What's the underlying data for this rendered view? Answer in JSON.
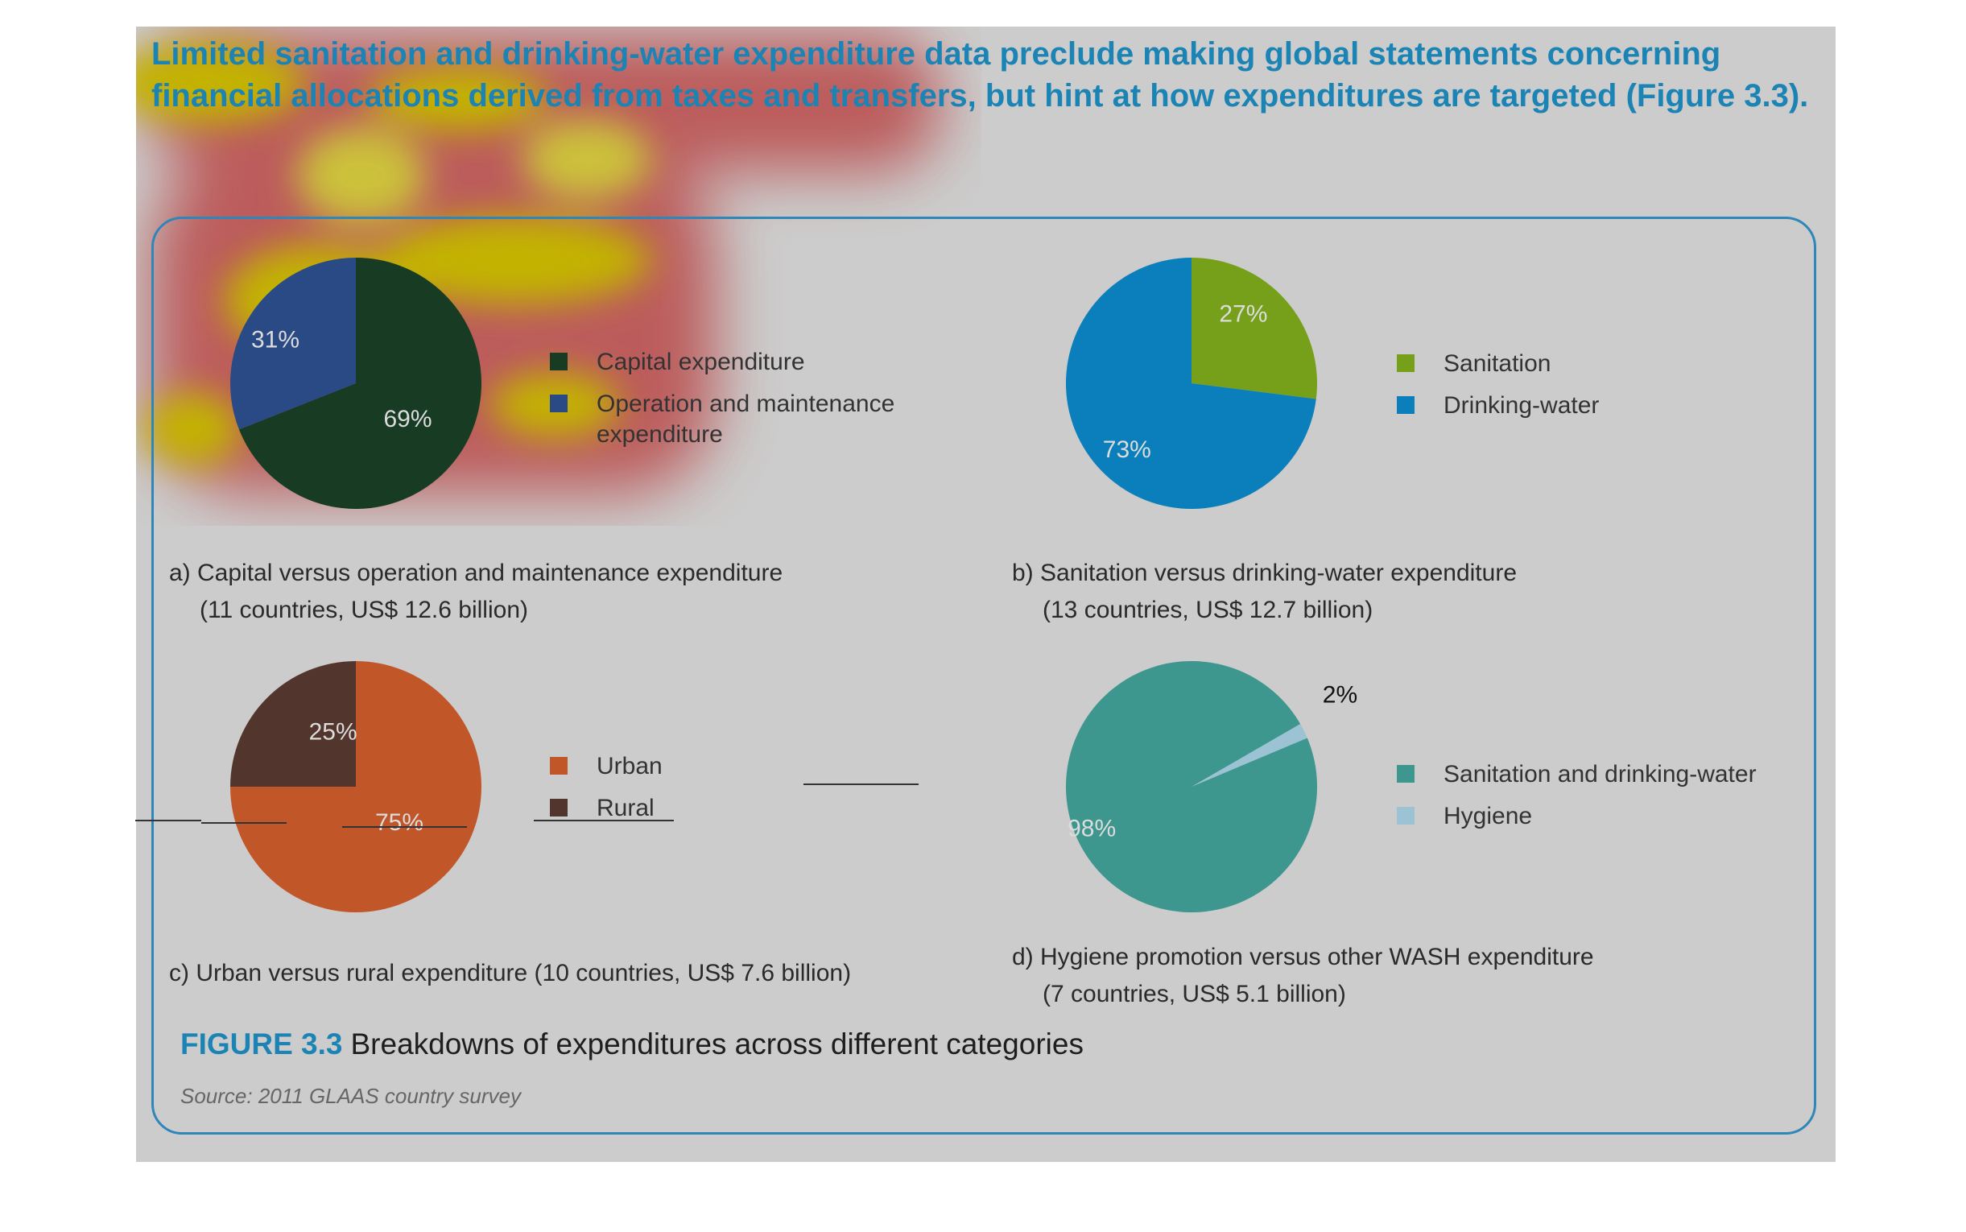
{
  "intro_text": "Limited sanitation and drinking-water expenditure data preclude making global statements concerning financial allocations derived from taxes and transfers, but hint at how expenditures are targeted (Figure 3.3).",
  "figure": {
    "number": "FIGURE 3.3",
    "title": "Breakdowns of expenditures across different categories",
    "source": "Source: 2011 GLAAS country survey"
  },
  "chart_data": [
    {
      "type": "pie",
      "title": "a) Capital versus operation and maintenance expenditure",
      "subtitle": "(11 countries, US$ 12.6 billion)",
      "slices": [
        {
          "label": "Capital expenditure",
          "value": 69,
          "display": "69%",
          "color": "#173b23"
        },
        {
          "label": "Operation and maintenance expenditure",
          "value": 31,
          "display": "31%",
          "color": "#2a4a86"
        }
      ]
    },
    {
      "type": "pie",
      "title": "b) Sanitation versus drinking-water expenditure",
      "subtitle": "(13 countries, US$ 12.7 billion)",
      "slices": [
        {
          "label": "Sanitation",
          "value": 27,
          "display": "27%",
          "color": "#76a01a"
        },
        {
          "label": "Drinking-water",
          "value": 73,
          "display": "73%",
          "color": "#0a7fbb"
        }
      ]
    },
    {
      "type": "pie",
      "title": "c) Urban versus rural expenditure (10 countries, US$ 7.6 billion)",
      "subtitle": "",
      "slices": [
        {
          "label": "Urban",
          "value": 75,
          "display": "75%",
          "color": "#c15629"
        },
        {
          "label": "Rural",
          "value": 25,
          "display": "25%",
          "color": "#52352d"
        }
      ]
    },
    {
      "type": "pie",
      "title": "d) Hygiene promotion versus other WASH expenditure",
      "subtitle": "(7 countries, US$ 5.1 billion)",
      "slices": [
        {
          "label": "Hygiene",
          "value": 2,
          "display": "2%",
          "color": "#9cc3d3"
        },
        {
          "label": "Sanitation and drinking-water",
          "value": 98,
          "display": "98%",
          "color": "#3d978f"
        }
      ]
    }
  ],
  "legends": [
    [
      {
        "label": "Capital expenditure",
        "color": "#173b23"
      },
      {
        "label": "Operation and maintenance expenditure",
        "color": "#2a4a86"
      }
    ],
    [
      {
        "label": "Sanitation",
        "color": "#76a01a"
      },
      {
        "label": "Drinking-water",
        "color": "#0a7fbb"
      }
    ],
    [
      {
        "label": "Urban",
        "color": "#c15629"
      },
      {
        "label": "Rural",
        "color": "#52352d"
      }
    ],
    [
      {
        "label": "Sanitation and drinking-water",
        "color": "#3d978f"
      },
      {
        "label": "Hygiene",
        "color": "#9cc3d3"
      }
    ]
  ]
}
